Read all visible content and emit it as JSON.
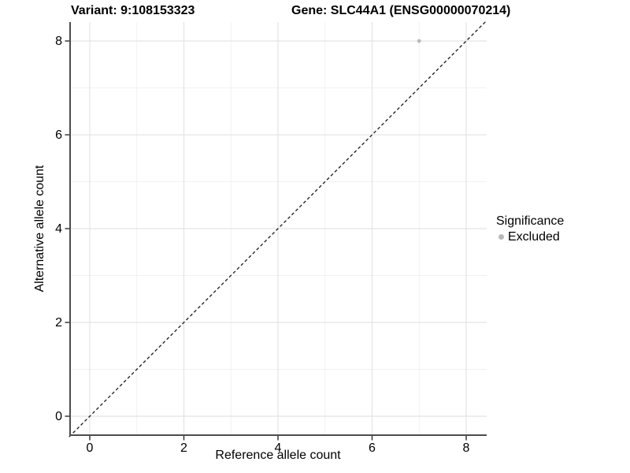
{
  "chart_data": {
    "type": "scatter",
    "title_left": "Variant: 9:108153323",
    "title_right": "Gene: SLC44A1 (ENSG00000070214)",
    "xlabel": "Reference allele count",
    "ylabel": "Alternative allele count",
    "xlim": [
      -0.44,
      8.44
    ],
    "ylim": [
      -0.44,
      8.44
    ],
    "x_ticks": [
      0,
      2,
      4,
      6,
      8
    ],
    "y_ticks": [
      0,
      2,
      4,
      6,
      8
    ],
    "x_minor_ticks": [
      1,
      3,
      5,
      7
    ],
    "y_minor_ticks": [
      1,
      3,
      5,
      7
    ],
    "grid": "major and minor gridlines on, white background",
    "legend_position": "right",
    "series": [
      {
        "name": "Excluded",
        "color": "#b9b9b9",
        "points": [
          {
            "x": 7,
            "y": 8
          }
        ],
        "point_radius": 2.4
      }
    ],
    "reference_line": {
      "kind": "identity y=x across full panel",
      "style": "dashed",
      "color": "#1a1a1a"
    }
  },
  "legend": {
    "title": "Significance",
    "items": [
      {
        "label": "Excluded",
        "color": "#b9b9b9"
      }
    ]
  },
  "colors": {
    "background": "#ffffff",
    "axis_line": "#4d4d4d",
    "tick_mark": "#2b2b2b",
    "grid_major": "#e4e4e4",
    "grid_minor": "#f1f1f1",
    "text": "#000000"
  }
}
